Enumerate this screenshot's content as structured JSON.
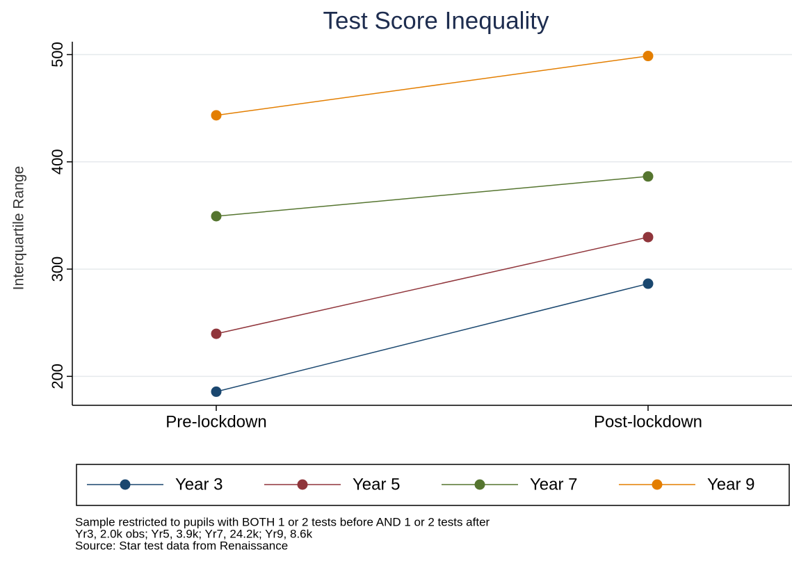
{
  "chart_data": {
    "type": "line",
    "title": "Test Score Inequality",
    "y_label": "Interquartile Range",
    "categories": [
      "Pre-lockdown",
      "Post-lockdown"
    ],
    "series": [
      {
        "name": "Year 3",
        "color": "#1a476f",
        "values": [
          185.7,
          286.4
        ]
      },
      {
        "name": "Year 5",
        "color": "#90353b",
        "values": [
          239.7,
          329.8
        ]
      },
      {
        "name": "Year 7",
        "color": "#55752f",
        "values": [
          349.3,
          386.4
        ]
      },
      {
        "name": "Year 9",
        "color": "#e37e00",
        "values": [
          443.4,
          498.7
        ]
      }
    ],
    "ylim": [
      173,
      512
    ],
    "yticks": [
      200,
      300,
      400,
      500
    ],
    "grid": true,
    "legend": "bottom",
    "notes": [
      "Sample restricted to pupils with BOTH 1 or 2 tests before AND 1 or 2 tests after",
      "Yr3, 2.0k obs; Yr5, 3.9k; Yr7, 24.2k; Yr9, 8.6k",
      "Source: Star test data from Renaissance"
    ]
  }
}
